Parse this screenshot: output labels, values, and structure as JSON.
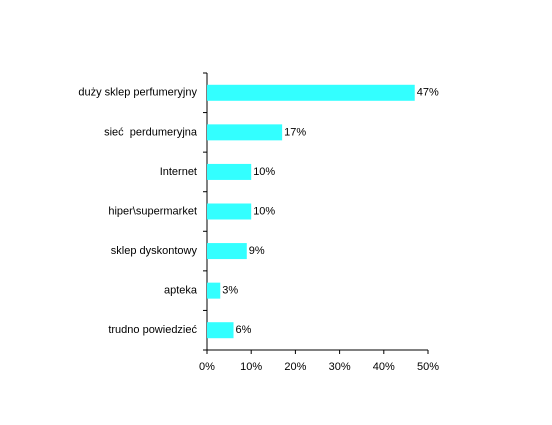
{
  "chart_data": {
    "type": "bar",
    "orientation": "horizontal",
    "categories": [
      "duży sklep perfumeryjny",
      "sieć  perdumeryjna",
      "Internet",
      "hiper\\supermarket",
      "sklep dyskontowy",
      "apteka",
      "trudno powiedzieć"
    ],
    "values": [
      47,
      17,
      10,
      10,
      9,
      3,
      6
    ],
    "value_labels": [
      "47%",
      "17%",
      "10%",
      "10%",
      "9%",
      "3%",
      "6%"
    ],
    "color": "#33ffff",
    "xlim": [
      0,
      50
    ],
    "xticks": [
      {
        "value": 0,
        "label": "0%"
      },
      {
        "value": 10,
        "label": "10%"
      },
      {
        "value": 20,
        "label": "20%"
      },
      {
        "value": 30,
        "label": "30%"
      },
      {
        "value": 40,
        "label": "40%"
      },
      {
        "value": 50,
        "label": "50%"
      }
    ],
    "grid": false
  }
}
